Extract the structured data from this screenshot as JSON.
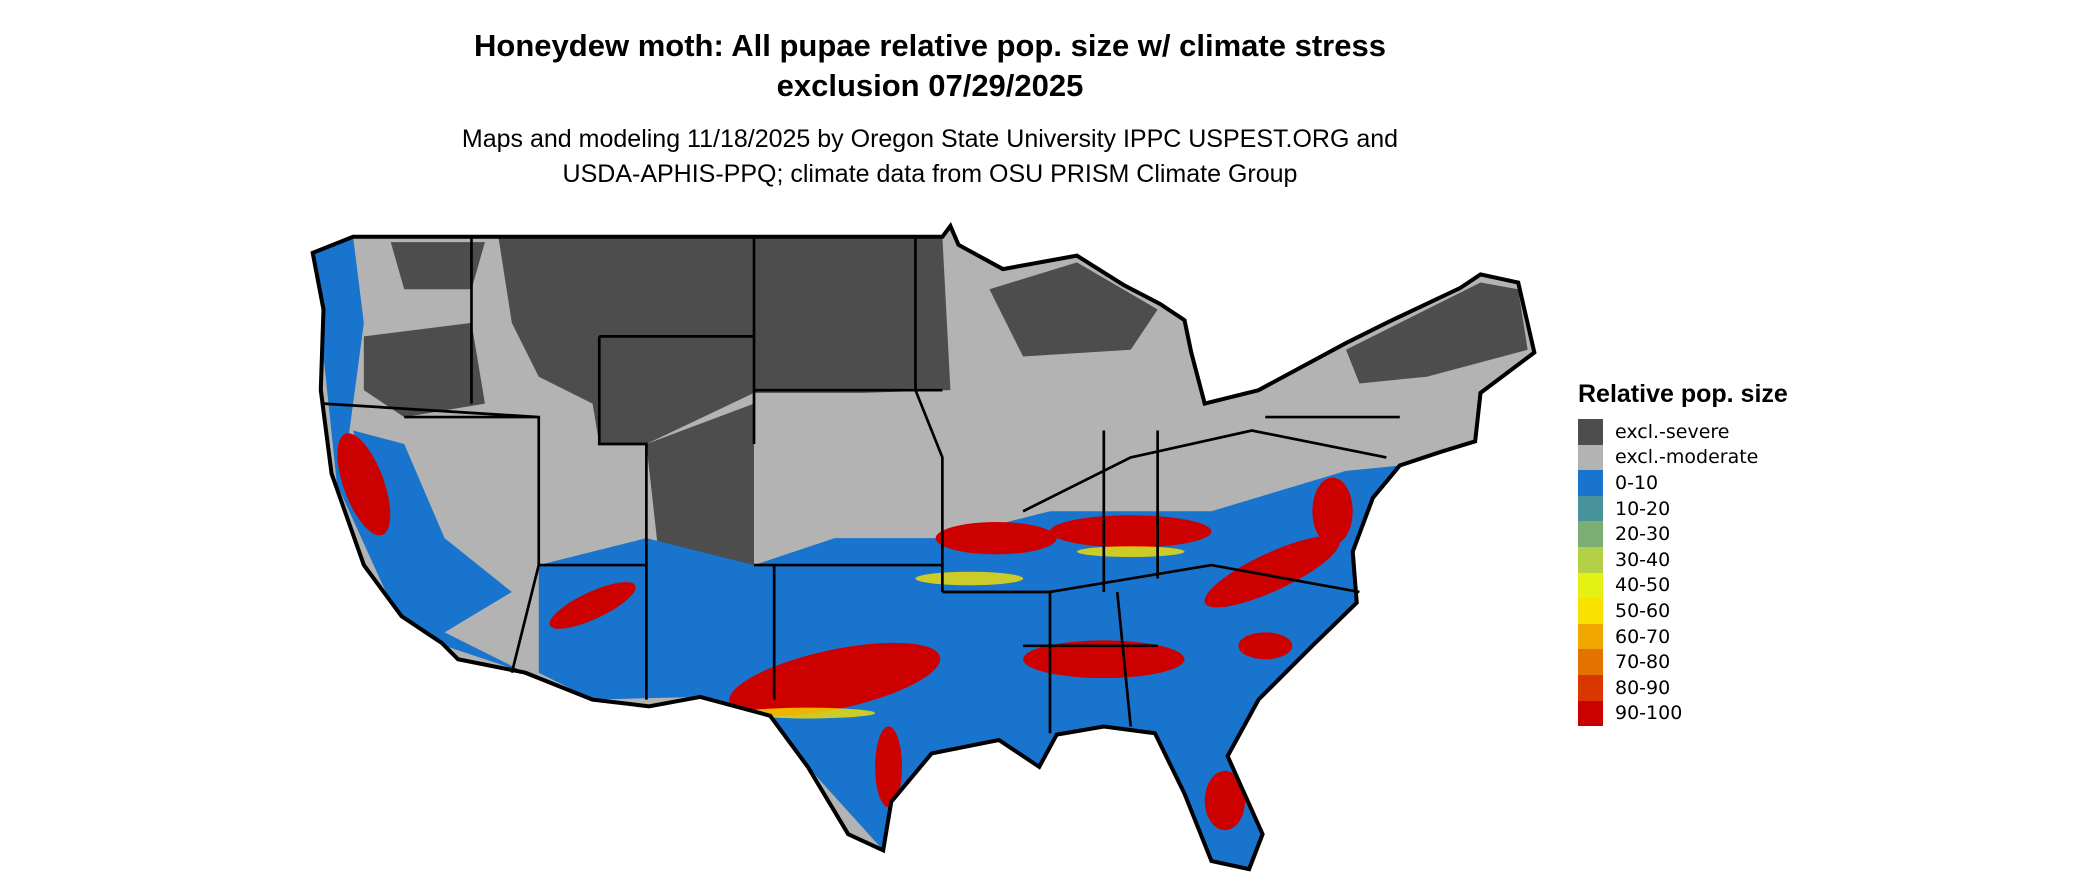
{
  "title": {
    "line1": "Honeydew moth: All pupae relative pop. size w/ climate stress",
    "line2": "exclusion 07/29/2025"
  },
  "subtitle": {
    "line1": "Maps and modeling 11/18/2025 by Oregon State University IPPC USPEST.ORG and",
    "line2": "USDA-APHIS-PPQ; climate data from OSU PRISM Climate Group"
  },
  "legend": {
    "title": "Relative pop. size",
    "items": [
      {
        "label": "excl.-severe",
        "color": "#4d4d4d"
      },
      {
        "label": "excl.-moderate",
        "color": "#b3b3b3"
      },
      {
        "label": "0-10",
        "color": "#1874cd"
      },
      {
        "label": "10-20",
        "color": "#48929b"
      },
      {
        "label": "20-30",
        "color": "#7aae73"
      },
      {
        "label": "30-40",
        "color": "#b2d147"
      },
      {
        "label": "40-50",
        "color": "#e5f015"
      },
      {
        "label": "50-60",
        "color": "#f9e100"
      },
      {
        "label": "60-70",
        "color": "#f0a800"
      },
      {
        "label": "70-80",
        "color": "#e37300"
      },
      {
        "label": "80-90",
        "color": "#d93600"
      },
      {
        "label": "90-100",
        "color": "#cd0000"
      }
    ]
  }
}
